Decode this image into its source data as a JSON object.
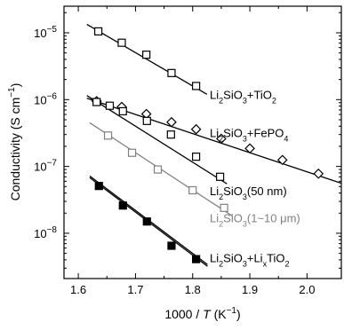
{
  "chart_data": {
    "type": "scatter",
    "xlabel": "1000 / T (K⁻¹)",
    "xlabel_parts": {
      "pre": "1000 / ",
      "var": "T",
      "post": " (K",
      "sup": "−1",
      "close": ")"
    },
    "ylabel": "Conductivity (S cm⁻¹)",
    "ylabel_parts": {
      "text": "Conductivity (S cm",
      "sup": "−1",
      "close": ")"
    },
    "x_scale": "linear",
    "y_scale": "log",
    "xlim": [
      1.575,
      2.06
    ],
    "ylim": [
      2.1e-09,
      2.5e-05
    ],
    "x_ticks": [
      1.6,
      1.7,
      1.8,
      1.9,
      2.0
    ],
    "x_tick_labels": [
      "1.6",
      "1.7",
      "1.8",
      "1.9",
      "2.0"
    ],
    "y_ticks": [
      {
        "value": 1e-05,
        "base": "10",
        "exp": "−5"
      },
      {
        "value": 1e-06,
        "base": "10",
        "exp": "−6"
      },
      {
        "value": 1e-07,
        "base": "10",
        "exp": "−7"
      },
      {
        "value": 1e-08,
        "base": "10",
        "exp": "−8"
      }
    ],
    "grid": false,
    "legend": "inline labels beside each series",
    "series": [
      {
        "name": "Li2SiO3+TiO2",
        "label_parts": [
          [
            "Li",
            ""
          ],
          [
            "2",
            "sub"
          ],
          [
            "SiO",
            ""
          ],
          [
            "3",
            "sub"
          ],
          [
            "+TiO",
            ""
          ],
          [
            "2",
            "sub"
          ]
        ],
        "marker": "square-open",
        "color": "#000000",
        "x": [
          1.635,
          1.676,
          1.719,
          1.763,
          1.806
        ],
        "y": [
          1.05e-05,
          7.1e-06,
          4.7e-06,
          2.5e-06,
          1.6e-06
        ],
        "fit": [
          [
            1.615,
            1.34e-05
          ],
          [
            1.825,
            1.2e-06
          ]
        ],
        "label_pos": [
          1.83,
          1.2e-06
        ]
      },
      {
        "name": "Li2SiO3+FePO4",
        "label_parts": [
          [
            "Li",
            ""
          ],
          [
            "2",
            "sub"
          ],
          [
            "SiO",
            ""
          ],
          [
            "3",
            "sub"
          ],
          [
            "+FePO",
            ""
          ],
          [
            "4",
            "sub"
          ]
        ],
        "marker": "diamond-open",
        "color": "#000000",
        "x": [
          1.632,
          1.676,
          1.719,
          1.763,
          1.806,
          1.85,
          1.9,
          1.957,
          2.02
        ],
        "y": [
          9.5e-07,
          7.8e-07,
          6.1e-07,
          4.6e-07,
          3.6e-07,
          2.6e-07,
          1.86e-07,
          1.25e-07,
          7.8e-08
        ],
        "fit": [
          [
            1.615,
            1.05e-06
          ],
          [
            2.06,
            5.6e-08
          ]
        ],
        "label_pos": [
          1.83,
          3.2e-07
        ]
      },
      {
        "name": "Li2SiO3(50 nm)",
        "label_parts": [
          [
            "Li",
            ""
          ],
          [
            "2",
            "sub"
          ],
          [
            "SiO",
            ""
          ],
          [
            "3",
            "sub"
          ],
          [
            "(50 nm)",
            ""
          ]
        ],
        "marker": "square-open",
        "color": "#000000",
        "x": [
          1.632,
          1.655,
          1.678,
          1.72,
          1.762,
          1.806,
          1.848
        ],
        "y": [
          9.2e-07,
          8.1e-07,
          6.7e-07,
          4.8e-07,
          3e-07,
          1.4e-07,
          7e-08
        ],
        "fit": [
          [
            1.615,
            1.15e-06
          ],
          [
            1.86,
            5.5e-08
          ]
        ],
        "label_pos": [
          1.83,
          4.3e-08
        ]
      },
      {
        "name": "Li2SiO3(1~10 μm)",
        "label_parts": [
          [
            "Li",
            ""
          ],
          [
            "2",
            "sub"
          ],
          [
            "SiO",
            ""
          ],
          [
            "3",
            "sub"
          ],
          [
            "(1~10 μm)",
            ""
          ]
        ],
        "marker": "square-open",
        "color": "#808080",
        "x": [
          1.652,
          1.694,
          1.739,
          1.8,
          1.855
        ],
        "y": [
          2.9e-07,
          1.6e-07,
          9e-08,
          4.4e-08,
          2.4e-08
        ],
        "fit": [
          [
            1.62,
            4.5e-07
          ],
          [
            1.87,
            1.8e-08
          ]
        ],
        "label_pos": [
          1.83,
          1.7e-08
        ]
      },
      {
        "name": "Li2SiO3+LixTiO2",
        "label_parts": [
          [
            "Li",
            ""
          ],
          [
            "2",
            "sub"
          ],
          [
            "SiO",
            ""
          ],
          [
            "3",
            "sub"
          ],
          [
            "+Li",
            ""
          ],
          [
            "x",
            "sub"
          ],
          [
            "TiO",
            ""
          ],
          [
            "2",
            "sub"
          ]
        ],
        "marker": "square-filled",
        "color": "#000000",
        "x": [
          1.636,
          1.678,
          1.72,
          1.763,
          1.806
        ],
        "y": [
          5.1e-08,
          2.6e-08,
          1.5e-08,
          6.5e-09,
          4.1e-09
        ],
        "fit": [
          [
            1.62,
            6.8e-08
          ],
          [
            1.826,
            3.2e-09
          ]
        ],
        "fit2": [
          [
            1.62,
            7.2e-08
          ],
          [
            1.826,
            3.4e-09
          ]
        ],
        "label_pos": [
          1.83,
          4.3e-09
        ]
      }
    ]
  }
}
